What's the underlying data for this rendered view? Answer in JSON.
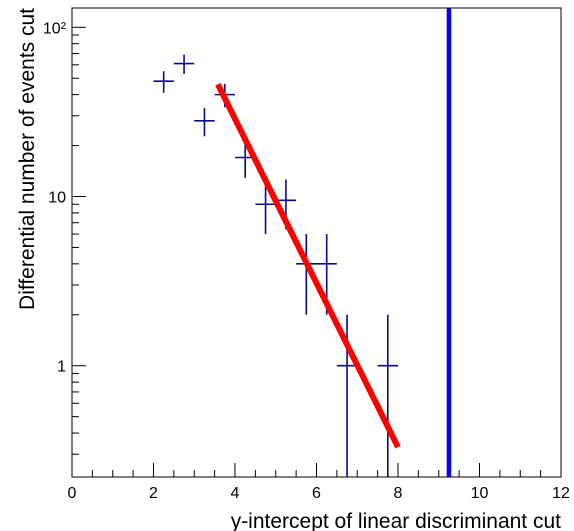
{
  "chart_data": {
    "type": "scatter",
    "title": "",
    "xlabel": "y-intercept of linear discriminant cut",
    "ylabel": "Differential number of events cut",
    "xlim": [
      0,
      12
    ],
    "ylim": [
      0.22,
      130
    ],
    "y_scale": "log",
    "x_ticks": [
      0,
      2,
      4,
      6,
      8,
      10,
      12
    ],
    "x_tick_labels": [
      "0",
      "2",
      "4",
      "6",
      "8",
      "10",
      "12"
    ],
    "y_ticks": [
      1,
      10,
      100
    ],
    "y_tick_labels": [
      "1",
      "10",
      "10²"
    ],
    "grid": false,
    "legend": "none",
    "series": [
      {
        "type": "errorbar",
        "color": "#0a0a8c",
        "x": [
          2.25,
          2.75,
          3.25,
          3.75,
          4.25,
          4.75,
          5.25,
          5.75,
          6.25,
          6.75,
          7.75
        ],
        "x_half_width": 0.25,
        "y": [
          48,
          61,
          28,
          40,
          17,
          9,
          9.5,
          4,
          4,
          1,
          1
        ],
        "y_err": [
          7,
          8,
          5.3,
          6.3,
          4.1,
          3,
          3.1,
          2,
          2,
          1,
          1
        ]
      },
      {
        "type": "fit-line",
        "color": "#ff0000",
        "x": [
          3.58,
          8.0
        ],
        "y": [
          46,
          0.33
        ]
      },
      {
        "type": "vertical-line",
        "color": "#0000ff",
        "x": 9.25
      }
    ]
  }
}
